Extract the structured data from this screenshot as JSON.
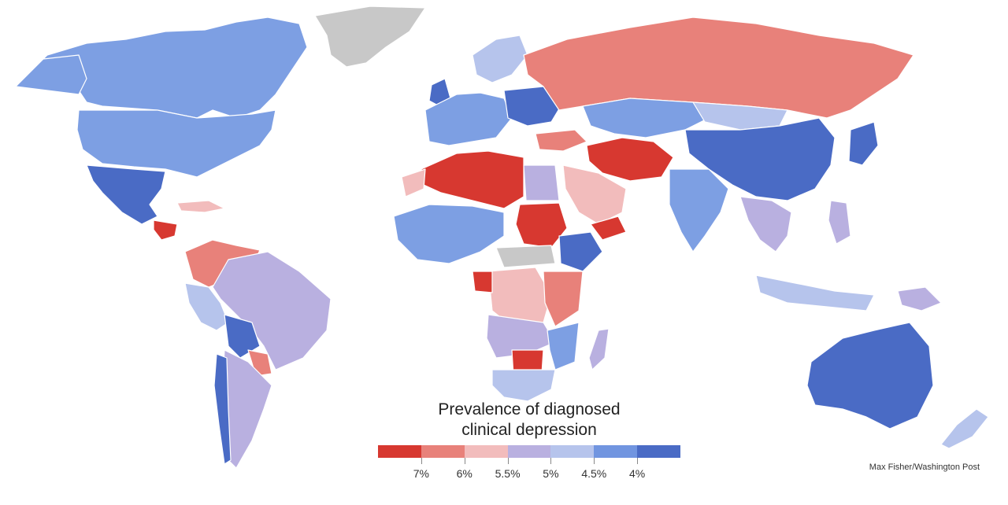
{
  "legend": {
    "title_line1": "Prevalence of diagnosed",
    "title_line2": "clinical depression",
    "colors": [
      "#d73830",
      "#e8817a",
      "#f2bcbc",
      "#b9b0e0",
      "#b6c4ec",
      "#7195e0",
      "#4a6bc5"
    ],
    "ticks": [
      "7%",
      "6%",
      "5.5%",
      "5%",
      "4.5%",
      "4%"
    ]
  },
  "credit": "Max Fisher/Washington Post",
  "no_data_color": "#c8c8c8"
}
